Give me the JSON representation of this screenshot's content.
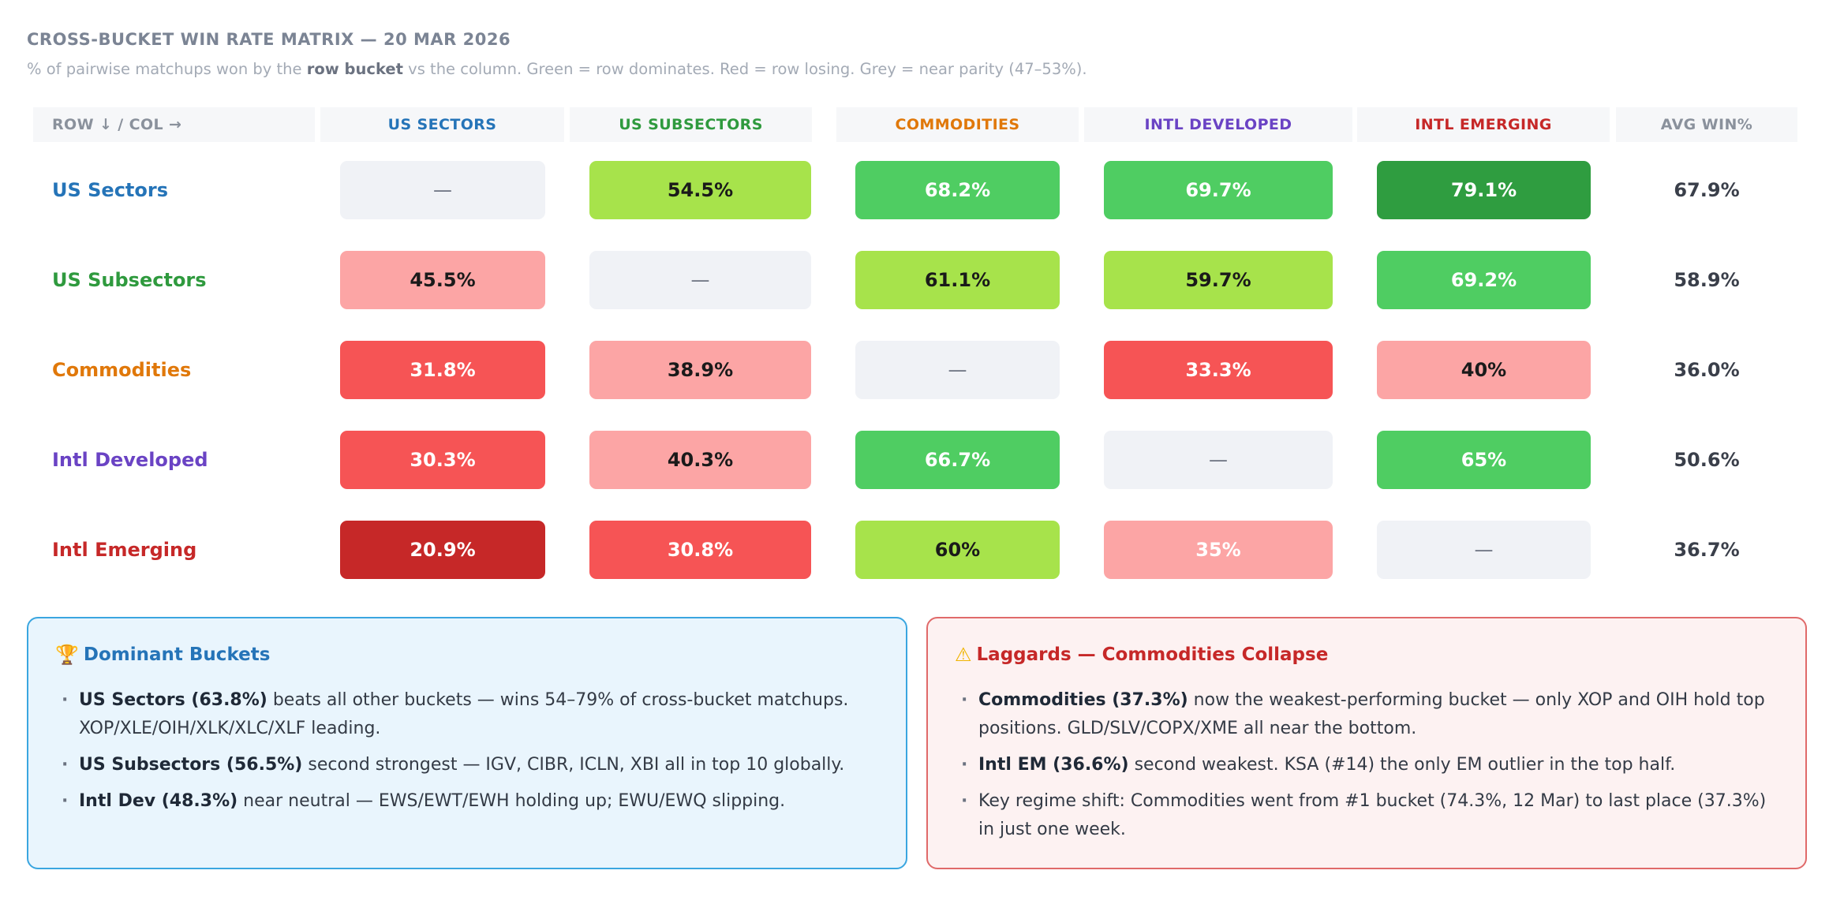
{
  "header": {
    "title": "CROSS-BUCKET WIN RATE MATRIX — 20 MAR 2026",
    "subtitle_pre": "% of pairwise matchups won by the ",
    "subtitle_bold": "row bucket",
    "subtitle_post": " vs the column. Green = row dominates. Red = row losing. Grey = near parity (47–53%)."
  },
  "table": {
    "corner_label": "ROW ↓ / COL →",
    "avg_label": "AVG WIN%",
    "columns": [
      "US SECTORS",
      "US SUBSECTORS",
      "COMMODITIES",
      "INTL DEVELOPED",
      "INTL EMERGING"
    ]
  },
  "colors": {
    "us_sectors": "#2574b8",
    "us_subsectors": "#2f9a3e",
    "commodities": "#e0780a",
    "intl_developed": "#6a43c4",
    "intl_emerging": "#c62828",
    "parity": "#f0f2f6",
    "light_green": "#a7e34b",
    "green": "#4fcd62",
    "dark_green": "#2f9d40",
    "light_red": "#fca5a5",
    "red": "#f65455",
    "dark_red": "#c62828"
  },
  "chart_data": {
    "type": "heatmap",
    "title": "CROSS-BUCKET WIN RATE MATRIX — 20 MAR 2026",
    "x_categories": [
      "US SECTORS",
      "US SUBSECTORS",
      "COMMODITIES",
      "INTL DEVELOPED",
      "INTL EMERGING"
    ],
    "rows": [
      {
        "name": "US Sectors",
        "color": "#2574b8",
        "avg": "67.9%",
        "cells": [
          {
            "label": "—",
            "value": null,
            "fill": "#f0f2f6",
            "text": "#6b7280"
          },
          {
            "label": "54.5%",
            "value": 54.5,
            "fill": "#a7e34b",
            "text": "#1a1a1a"
          },
          {
            "label": "68.2%",
            "value": 68.2,
            "fill": "#4fcd62",
            "text": "#ffffff"
          },
          {
            "label": "69.7%",
            "value": 69.7,
            "fill": "#4fcd62",
            "text": "#ffffff"
          },
          {
            "label": "79.1%",
            "value": 79.1,
            "fill": "#2f9d40",
            "text": "#ffffff"
          }
        ]
      },
      {
        "name": "US Subsectors",
        "color": "#2f9a3e",
        "avg": "58.9%",
        "cells": [
          {
            "label": "45.5%",
            "value": 45.5,
            "fill": "#fca5a5",
            "text": "#1a1a1a"
          },
          {
            "label": "—",
            "value": null,
            "fill": "#f0f2f6",
            "text": "#6b7280"
          },
          {
            "label": "61.1%",
            "value": 61.1,
            "fill": "#a7e34b",
            "text": "#1a1a1a"
          },
          {
            "label": "59.7%",
            "value": 59.7,
            "fill": "#a7e34b",
            "text": "#1a1a1a"
          },
          {
            "label": "69.2%",
            "value": 69.2,
            "fill": "#4fcd62",
            "text": "#ffffff"
          }
        ]
      },
      {
        "name": "Commodities",
        "color": "#e0780a",
        "avg": "36.0%",
        "cells": [
          {
            "label": "31.8%",
            "value": 31.8,
            "fill": "#f65455",
            "text": "#ffffff"
          },
          {
            "label": "38.9%",
            "value": 38.9,
            "fill": "#fca5a5",
            "text": "#1a1a1a"
          },
          {
            "label": "—",
            "value": null,
            "fill": "#f0f2f6",
            "text": "#6b7280"
          },
          {
            "label": "33.3%",
            "value": 33.3,
            "fill": "#f65455",
            "text": "#ffffff"
          },
          {
            "label": "40%",
            "value": 40,
            "fill": "#fca5a5",
            "text": "#1a1a1a"
          }
        ]
      },
      {
        "name": "Intl Developed",
        "color": "#6a43c4",
        "avg": "50.6%",
        "cells": [
          {
            "label": "30.3%",
            "value": 30.3,
            "fill": "#f65455",
            "text": "#ffffff"
          },
          {
            "label": "40.3%",
            "value": 40.3,
            "fill": "#fca5a5",
            "text": "#1a1a1a"
          },
          {
            "label": "66.7%",
            "value": 66.7,
            "fill": "#4fcd62",
            "text": "#ffffff"
          },
          {
            "label": "—",
            "value": null,
            "fill": "#f0f2f6",
            "text": "#6b7280"
          },
          {
            "label": "65%",
            "value": 65,
            "fill": "#4fcd62",
            "text": "#ffffff"
          }
        ]
      },
      {
        "name": "Intl Emerging",
        "color": "#c62828",
        "avg": "36.7%",
        "cells": [
          {
            "label": "20.9%",
            "value": 20.9,
            "fill": "#c62828",
            "text": "#ffffff"
          },
          {
            "label": "30.8%",
            "value": 30.8,
            "fill": "#f65455",
            "text": "#ffffff"
          },
          {
            "label": "60%",
            "value": 60,
            "fill": "#a7e34b",
            "text": "#1a1a1a"
          },
          {
            "label": "35%",
            "value": 35,
            "fill": "#fca5a5",
            "text": "#ffffff"
          },
          {
            "label": "—",
            "value": null,
            "fill": "#f0f2f6",
            "text": "#6b7280"
          }
        ]
      }
    ]
  },
  "panels": {
    "dominant": {
      "icon": "trophy-icon",
      "icon_glyph": "🏆",
      "title": "Dominant Buckets",
      "bullets": [
        {
          "bold": "US Sectors (63.8%)",
          "text": " beats all other buckets — wins 54–79% of cross-bucket matchups. XOP/XLE/OIH/XLK/XLC/XLF leading."
        },
        {
          "bold": "US Subsectors (56.5%)",
          "text": " second strongest — IGV, CIBR, ICLN, XBI all in top 10 globally."
        },
        {
          "bold": "Intl Dev (48.3%)",
          "text": " near neutral — EWS/EWT/EWH holding up; EWU/EWQ slipping."
        }
      ]
    },
    "laggards": {
      "icon": "warning-icon",
      "icon_glyph": "⚠",
      "title": "Laggards — Commodities Collapse",
      "bullets": [
        {
          "bold": "Commodities (37.3%)",
          "text": " now the weakest-performing bucket — only XOP and OIH hold top positions. GLD/SLV/COPX/XME all near the bottom."
        },
        {
          "bold": "Intl EM (36.6%)",
          "text": " second weakest. KSA (#14) the only EM outlier in the top half."
        },
        {
          "bold": "",
          "text": "Key regime shift: Commodities went from #1 bucket (74.3%, 12 Mar) to last place (37.3%) in just one week."
        }
      ]
    }
  }
}
